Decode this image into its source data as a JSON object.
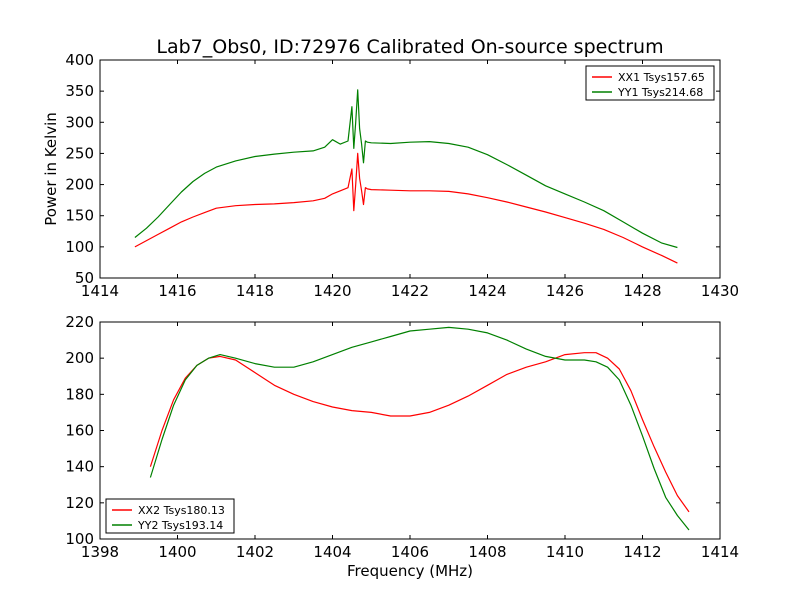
{
  "title": "Lab7_Obs0, ID:72976 Calibrated On-source spectrum",
  "chart_data": [
    {
      "type": "line",
      "title": "Lab7_Obs0, ID:72976 Calibrated On-source spectrum",
      "xlabel": "",
      "ylabel": "Power in Kelvin",
      "xlim": [
        1414,
        1430
      ],
      "ylim": [
        50,
        400
      ],
      "xticks": [
        1414,
        1416,
        1418,
        1420,
        1422,
        1424,
        1426,
        1428,
        1430
      ],
      "yticks": [
        50,
        100,
        150,
        200,
        250,
        300,
        350,
        400
      ],
      "grid": false,
      "legend_position": "upper-right",
      "series": [
        {
          "name": "XX1 Tsys157.65",
          "color": "#ff0000",
          "x": [
            1414.9,
            1415.2,
            1415.5,
            1415.8,
            1416.1,
            1416.4,
            1416.7,
            1417.0,
            1417.5,
            1418.0,
            1418.5,
            1419.0,
            1419.5,
            1419.8,
            1420.0,
            1420.2,
            1420.4,
            1420.5,
            1420.55,
            1420.6,
            1420.65,
            1420.7,
            1420.75,
            1420.8,
            1420.85,
            1420.9,
            1421.0,
            1421.5,
            1422.0,
            1422.5,
            1423.0,
            1423.5,
            1424.0,
            1424.5,
            1425.0,
            1425.5,
            1426.0,
            1426.5,
            1427.0,
            1427.5,
            1428.0,
            1428.5,
            1428.9
          ],
          "y": [
            100,
            110,
            120,
            130,
            140,
            148,
            155,
            162,
            166,
            168,
            169,
            171,
            174,
            178,
            185,
            190,
            195,
            225,
            158,
            200,
            250,
            210,
            190,
            168,
            195,
            193,
            192,
            191,
            190,
            190,
            189,
            185,
            179,
            172,
            164,
            156,
            147,
            138,
            128,
            115,
            100,
            86,
            74
          ]
        },
        {
          "name": "YY1 Tsys214.68",
          "color": "#008000",
          "x": [
            1414.9,
            1415.2,
            1415.5,
            1415.8,
            1416.1,
            1416.4,
            1416.7,
            1417.0,
            1417.5,
            1418.0,
            1418.5,
            1419.0,
            1419.5,
            1419.8,
            1420.0,
            1420.2,
            1420.4,
            1420.5,
            1420.55,
            1420.6,
            1420.65,
            1420.7,
            1420.75,
            1420.8,
            1420.85,
            1420.9,
            1421.0,
            1421.5,
            1422.0,
            1422.5,
            1423.0,
            1423.5,
            1424.0,
            1424.5,
            1425.0,
            1425.5,
            1426.0,
            1426.5,
            1427.0,
            1427.5,
            1428.0,
            1428.5,
            1428.9
          ],
          "y": [
            115,
            130,
            148,
            168,
            188,
            205,
            218,
            228,
            238,
            245,
            249,
            252,
            254,
            260,
            272,
            265,
            270,
            325,
            258,
            300,
            352,
            290,
            265,
            235,
            270,
            268,
            267,
            266,
            268,
            269,
            266,
            260,
            248,
            232,
            215,
            198,
            185,
            172,
            158,
            140,
            122,
            106,
            99
          ]
        }
      ]
    },
    {
      "type": "line",
      "title": "",
      "xlabel": "Frequency (MHz)",
      "ylabel": "",
      "xlim": [
        1398,
        1414
      ],
      "ylim": [
        100,
        220
      ],
      "xticks": [
        1398,
        1400,
        1402,
        1404,
        1406,
        1408,
        1410,
        1412,
        1414
      ],
      "yticks": [
        100,
        120,
        140,
        160,
        180,
        200,
        220
      ],
      "grid": false,
      "legend_position": "lower-left",
      "series": [
        {
          "name": "XX2 Tsys180.13",
          "color": "#ff0000",
          "x": [
            1399.3,
            1399.6,
            1399.9,
            1400.2,
            1400.5,
            1400.8,
            1401.1,
            1401.5,
            1402.0,
            1402.5,
            1403.0,
            1403.5,
            1404.0,
            1404.5,
            1405.0,
            1405.5,
            1406.0,
            1406.5,
            1407.0,
            1407.5,
            1408.0,
            1408.5,
            1409.0,
            1409.5,
            1410.0,
            1410.5,
            1410.8,
            1411.1,
            1411.4,
            1411.7,
            1412.0,
            1412.3,
            1412.6,
            1412.9,
            1413.2
          ],
          "y": [
            140,
            160,
            177,
            189,
            196,
            200,
            201,
            199,
            192,
            185,
            180,
            176,
            173,
            171,
            170,
            168,
            168,
            170,
            174,
            179,
            185,
            191,
            195,
            198,
            202,
            203,
            203,
            200,
            194,
            182,
            166,
            151,
            137,
            124,
            115
          ]
        },
        {
          "name": "YY2 Tsys193.14",
          "color": "#008000",
          "x": [
            1399.3,
            1399.6,
            1399.9,
            1400.2,
            1400.5,
            1400.8,
            1401.1,
            1401.5,
            1402.0,
            1402.5,
            1403.0,
            1403.5,
            1404.0,
            1404.5,
            1405.0,
            1405.5,
            1406.0,
            1406.5,
            1407.0,
            1407.5,
            1408.0,
            1408.5,
            1409.0,
            1409.5,
            1410.0,
            1410.5,
            1410.8,
            1411.1,
            1411.4,
            1411.7,
            1412.0,
            1412.3,
            1412.6,
            1412.9,
            1413.2
          ],
          "y": [
            134,
            155,
            174,
            188,
            196,
            200,
            202,
            200,
            197,
            195,
            195,
            198,
            202,
            206,
            209,
            212,
            215,
            216,
            217,
            216,
            214,
            210,
            205,
            201,
            199,
            199,
            198,
            195,
            188,
            174,
            157,
            139,
            123,
            113,
            105
          ]
        }
      ]
    }
  ]
}
